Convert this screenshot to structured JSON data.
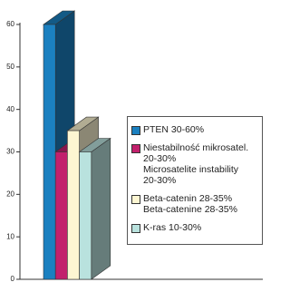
{
  "chart_data": {
    "type": "bar3d",
    "series": [
      {
        "name": "PTEN 30-60%",
        "color": "#1b80c0",
        "values": [
          60
        ]
      },
      {
        "name": "Niestabilność mikrosatel.\n20-30%\nMicrosatelite instability\n20-30%",
        "color": "#c2206c",
        "values": [
          30
        ]
      },
      {
        "name": "Beta-catenin 28-35%\nBeta-catenine 28-35%",
        "color": "#fdf6d2",
        "values": [
          35
        ]
      },
      {
        "name": "K-ras 10-30%",
        "color": "#b9e2de",
        "values": [
          30
        ]
      }
    ],
    "ylim": [
      0,
      60
    ],
    "yticks": [
      0,
      10,
      20,
      30,
      40,
      50,
      60
    ]
  }
}
